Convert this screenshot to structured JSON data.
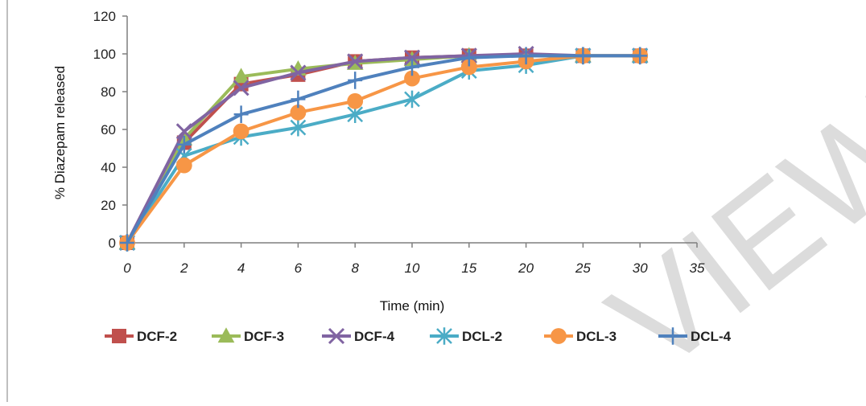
{
  "chart_data": {
    "type": "line",
    "title": "",
    "xlabel": "Time (min)",
    "ylabel": "% Diazepam released",
    "x_ticks": [
      "0",
      "2",
      "4",
      "6",
      "8",
      "10",
      "15",
      "20",
      "25",
      "30",
      "35"
    ],
    "y_ticks": [
      "0",
      "20",
      "40",
      "60",
      "80",
      "100",
      "120"
    ],
    "ylim": [
      0,
      120
    ],
    "categories": [
      "0",
      "2",
      "4",
      "6",
      "8",
      "10",
      "15",
      "20",
      "25",
      "30"
    ],
    "legend_position": "bottom",
    "grid": false,
    "series": [
      {
        "name": "DCF-2",
        "color": "#c0504d",
        "marker": "square",
        "values": [
          0,
          53,
          84,
          89,
          96,
          98,
          99,
          99,
          99,
          99
        ]
      },
      {
        "name": "DCF-3",
        "color": "#9bbb59",
        "marker": "triangle",
        "values": [
          0,
          55,
          88,
          92,
          95,
          97,
          99,
          99,
          99,
          99
        ]
      },
      {
        "name": "DCF-4",
        "color": "#8064a2",
        "marker": "x",
        "values": [
          0,
          59,
          82,
          90,
          96,
          98,
          99,
          100,
          99,
          99
        ]
      },
      {
        "name": "DCL-2",
        "color": "#4bacc6",
        "marker": "star",
        "values": [
          0,
          46,
          56,
          61,
          68,
          76,
          91,
          94,
          99,
          99
        ]
      },
      {
        "name": "DCL-3",
        "color": "#f79646",
        "marker": "circle",
        "values": [
          0,
          41,
          59,
          69,
          75,
          87,
          93,
          96,
          99,
          99
        ]
      },
      {
        "name": "DCL-4",
        "color": "#4f81bd",
        "marker": "plus",
        "values": [
          0,
          52,
          68,
          76,
          86,
          93,
          98,
          99,
          99,
          99
        ]
      }
    ]
  },
  "watermark": {
    "text": "VIEW",
    "color": "#cfcfcf"
  }
}
